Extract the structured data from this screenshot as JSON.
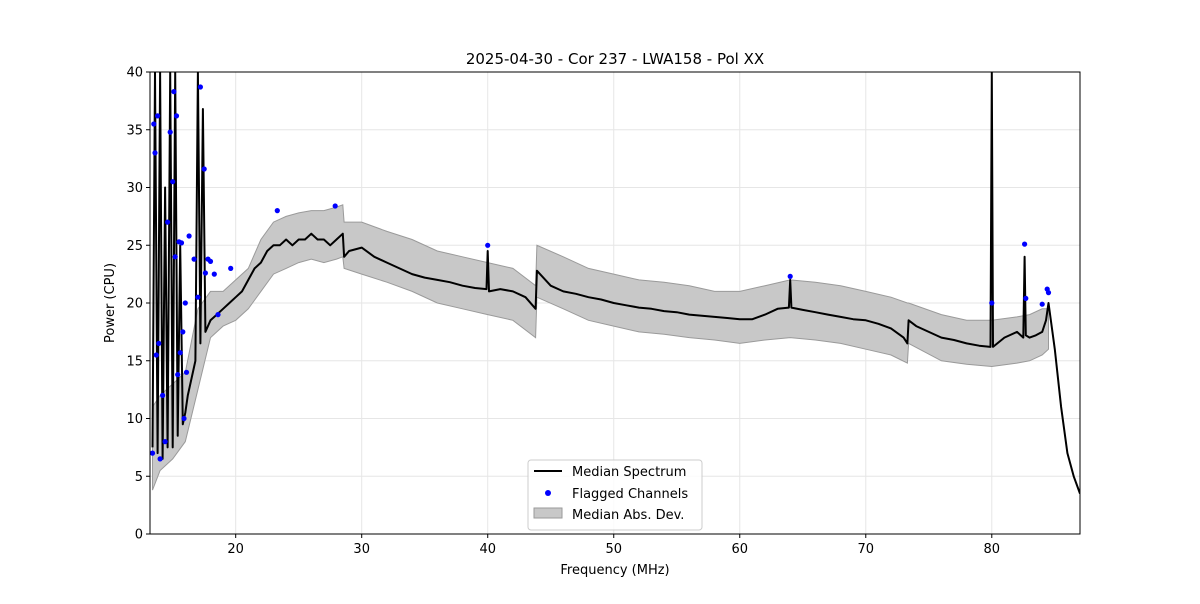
{
  "chart_data": {
    "type": "line",
    "title": "2025-04-30 - Cor 237 - LWA158 - Pol XX",
    "xlabel": "Frequency (MHz)",
    "ylabel": "Power (CPU)",
    "xlim": [
      13.2,
      87.0
    ],
    "ylim": [
      0,
      40
    ],
    "xticks": [
      20,
      30,
      40,
      50,
      60,
      70,
      80
    ],
    "yticks": [
      0,
      5,
      10,
      15,
      20,
      25,
      30,
      35,
      40
    ],
    "grid": true,
    "legend": {
      "placement": "lower center"
    },
    "colors": {
      "median": "#000000",
      "flagged": "#0000ff",
      "mad": "#c8c8c8",
      "mad_edge": "#9a9a9a",
      "grid": "#e6e6e6"
    },
    "series": [
      {
        "name": "Median Spectrum",
        "kind": "line",
        "x": [
          13.4,
          13.6,
          13.8,
          14.0,
          14.2,
          14.4,
          14.6,
          14.8,
          15.0,
          15.2,
          15.4,
          15.6,
          15.8,
          16.0,
          16.2,
          16.5,
          16.8,
          17.0,
          17.2,
          17.4,
          17.6,
          18.0,
          18.5,
          19.0,
          19.5,
          20.0,
          20.5,
          21.0,
          21.5,
          22.0,
          22.5,
          23.0,
          23.5,
          24.0,
          24.5,
          25.0,
          25.5,
          26.0,
          26.5,
          27.0,
          27.5,
          28.0,
          28.5,
          28.6,
          29.0,
          30.0,
          31.0,
          32.0,
          33.0,
          34.0,
          35.0,
          36.0,
          37.0,
          38.0,
          39.0,
          39.9,
          40.0,
          40.1,
          41.0,
          42.0,
          43.0,
          43.8,
          43.9,
          45.0,
          46.0,
          47.0,
          48.0,
          49.0,
          50.0,
          51.0,
          52.0,
          53.0,
          54.0,
          55.0,
          56.0,
          57.0,
          58.0,
          59.0,
          60.0,
          61.0,
          62.0,
          63.0,
          63.9,
          64.0,
          64.1,
          65.0,
          66.0,
          67.0,
          68.0,
          69.0,
          70.0,
          71.0,
          72.0,
          73.0,
          73.3,
          73.4,
          74.0,
          75.0,
          76.0,
          77.0,
          78.0,
          79.0,
          79.9,
          80.0,
          80.1,
          81.0,
          82.0,
          82.5,
          82.6,
          82.7,
          83.0,
          83.5,
          84.0,
          84.3,
          84.5,
          85.0,
          85.5,
          86.0,
          86.5,
          87.0
        ],
        "y": [
          7.5,
          40,
          7.0,
          40,
          6.5,
          30,
          7.5,
          40,
          7.5,
          40,
          8.5,
          25,
          9.5,
          10.5,
          12.0,
          13.5,
          15.0,
          40,
          16.5,
          36.8,
          17.5,
          18.5,
          19.0,
          19.5,
          20.0,
          20.5,
          21.0,
          22.0,
          23.0,
          23.5,
          24.5,
          25.0,
          25.0,
          25.5,
          25.0,
          25.5,
          25.5,
          26.0,
          25.5,
          25.5,
          25.0,
          25.5,
          26.0,
          24.0,
          24.5,
          24.8,
          24.0,
          23.5,
          23.0,
          22.5,
          22.2,
          22.0,
          21.8,
          21.5,
          21.3,
          21.2,
          24.5,
          21.0,
          21.2,
          21.0,
          20.5,
          19.5,
          22.8,
          21.5,
          21.0,
          20.8,
          20.5,
          20.3,
          20.0,
          19.8,
          19.6,
          19.5,
          19.3,
          19.2,
          19.0,
          18.9,
          18.8,
          18.7,
          18.6,
          18.6,
          19.0,
          19.5,
          19.6,
          22.0,
          19.6,
          19.4,
          19.2,
          19.0,
          18.8,
          18.6,
          18.5,
          18.2,
          17.8,
          17.0,
          16.5,
          18.5,
          18.0,
          17.5,
          17.0,
          16.8,
          16.5,
          16.3,
          16.2,
          40,
          16.2,
          17.0,
          17.5,
          17.0,
          24.0,
          17.2,
          17.0,
          17.2,
          17.5,
          18.5,
          20.0,
          16.0,
          11.0,
          7.0,
          5.0,
          3.5
        ]
      },
      {
        "name": "Flagged Channels",
        "kind": "points",
        "x": [
          13.4,
          13.5,
          13.6,
          13.7,
          13.8,
          13.9,
          14.0,
          14.2,
          14.4,
          14.6,
          14.8,
          15.0,
          15.1,
          15.2,
          15.3,
          15.4,
          15.5,
          15.6,
          15.7,
          15.8,
          15.9,
          16.0,
          16.1,
          16.3,
          16.7,
          17.0,
          17.2,
          17.5,
          17.6,
          17.8,
          18.0,
          18.3,
          18.6,
          19.6,
          23.3,
          27.9,
          40.0,
          64.0,
          80.0,
          82.6,
          82.7,
          84.0,
          84.4,
          84.5
        ],
        "y": [
          7.0,
          35.5,
          33.0,
          15.5,
          36.2,
          16.5,
          6.5,
          12.0,
          8.0,
          27.0,
          34.8,
          30.5,
          38.3,
          24.0,
          36.2,
          13.8,
          25.3,
          15.7,
          25.2,
          17.5,
          10.0,
          20.0,
          14.0,
          25.8,
          23.8,
          20.5,
          38.7,
          31.6,
          22.6,
          23.8,
          23.6,
          22.5,
          19.0,
          23.0,
          28.0,
          28.4,
          25.0,
          22.3,
          20.0,
          25.1,
          20.4,
          19.9,
          21.2,
          20.9
        ]
      },
      {
        "name": "Median Abs. Dev.",
        "kind": "band",
        "x": [
          13.4,
          14.0,
          15.0,
          16.0,
          17.0,
          18.0,
          19.0,
          20.0,
          21.0,
          22.0,
          23.0,
          24.0,
          25.0,
          26.0,
          27.0,
          28.0,
          28.5,
          28.6,
          30.0,
          32.0,
          34.0,
          36.0,
          38.0,
          40.0,
          42.0,
          43.8,
          43.9,
          46.0,
          48.0,
          50.0,
          52.0,
          54.0,
          56.0,
          58.0,
          60.0,
          62.0,
          64.0,
          66.0,
          68.0,
          70.0,
          72.0,
          73.3,
          73.4,
          76.0,
          78.0,
          80.0,
          82.0,
          83.0,
          84.0,
          84.5
        ],
        "lower": [
          3.8,
          5.5,
          6.5,
          8.0,
          12.5,
          17.0,
          18.0,
          18.5,
          19.5,
          21.0,
          22.5,
          23.0,
          23.5,
          23.8,
          23.5,
          23.8,
          24.0,
          23.0,
          22.5,
          21.8,
          21.0,
          20.0,
          19.5,
          19.0,
          18.5,
          17.0,
          20.5,
          19.5,
          18.5,
          18.0,
          17.5,
          17.3,
          17.0,
          16.8,
          16.5,
          16.8,
          17.0,
          16.8,
          16.5,
          16.0,
          15.5,
          14.8,
          16.5,
          15.0,
          14.7,
          14.5,
          14.8,
          15.0,
          15.5,
          16.0
        ],
        "upper": [
          11.0,
          12.0,
          13.0,
          14.0,
          19.5,
          21.0,
          21.0,
          22.0,
          23.0,
          25.5,
          27.0,
          27.5,
          27.8,
          28.0,
          28.0,
          28.3,
          28.5,
          27.0,
          27.0,
          26.2,
          25.5,
          24.5,
          24.0,
          23.5,
          23.0,
          21.5,
          25.0,
          24.0,
          23.0,
          22.5,
          22.0,
          21.8,
          21.5,
          21.0,
          21.0,
          21.5,
          22.0,
          21.8,
          21.5,
          21.0,
          20.5,
          20.0,
          20.0,
          19.0,
          18.5,
          18.5,
          18.8,
          19.0,
          19.5,
          19.5
        ]
      }
    ]
  }
}
